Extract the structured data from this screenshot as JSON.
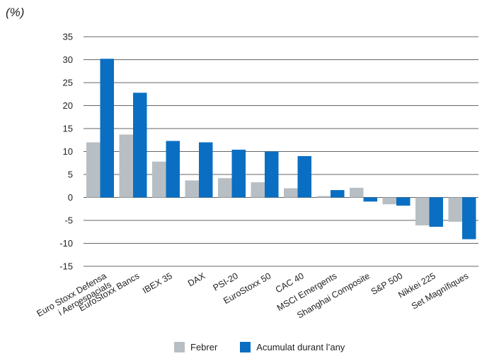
{
  "unit_label": "(%)",
  "colors": {
    "febrer": "#b8bfc4",
    "acumulat": "#0a6fc2",
    "axis": "#333333",
    "grid": "#333333"
  },
  "legend": {
    "febrer": "Febrer",
    "acumulat": "Acumulat durant l’any"
  },
  "chart_data": {
    "type": "bar",
    "categories": [
      [
        "Euro Stoxx Defensa",
        "i Aeroespacials"
      ],
      [
        "EuroStoxx Bancs"
      ],
      [
        "IBEX 35"
      ],
      [
        "DAX"
      ],
      [
        "PSI-20"
      ],
      [
        "EuroStoxx 50"
      ],
      [
        "CAC 40"
      ],
      [
        "MSCI Emergents"
      ],
      [
        "Shanghai Composite"
      ],
      [
        "S&P 500"
      ],
      [
        "Nikkei 225"
      ],
      [
        "Set Magnífiques"
      ]
    ],
    "series": [
      {
        "name": "Febrer",
        "values": [
          12.0,
          13.7,
          7.8,
          3.7,
          4.2,
          3.3,
          2.0,
          0.3,
          2.1,
          -1.5,
          -6.1,
          -5.3
        ]
      },
      {
        "name": "Acumulat durant l’any",
        "values": [
          30.2,
          22.8,
          12.3,
          12.0,
          10.4,
          10.0,
          9.0,
          1.6,
          -0.9,
          -1.8,
          -6.4,
          -9.1
        ]
      }
    ],
    "ylim": [
      -15,
      35
    ],
    "yticks": [
      35,
      30,
      25,
      20,
      15,
      10,
      5,
      0,
      -5,
      -10,
      -15
    ],
    "grid": true,
    "legend_position": "bottom"
  }
}
